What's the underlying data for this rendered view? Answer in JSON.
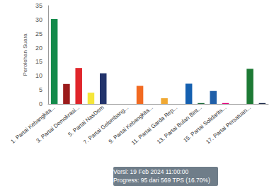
{
  "chart_data": {
    "type": "bar",
    "y_label": "Perolehan Suara",
    "categories": [
      "1. Partai Kebangkita...",
      null,
      "3. Partai Demokrasi...",
      null,
      "5. Partai NasDem",
      null,
      "7. Partai Gelombang...",
      null,
      "9. Partai Kebangkita...",
      null,
      "11. Partai Garda Rep...",
      null,
      "13. Partai Bulan Bint...",
      null,
      "15. Partai Solidarits...",
      null,
      "17. Partai Persatuan...",
      null
    ],
    "values": [
      30.2,
      7.1,
      12.8,
      4.0,
      10.9,
      0,
      0,
      6.4,
      0,
      2.0,
      0,
      7.2,
      0.3,
      4.6,
      0.3,
      0,
      12.5,
      0.3
    ],
    "colors": [
      "#138a4a",
      "#9b1b1b",
      "#e0252b",
      "#f5e63a",
      "#22336b",
      "#d83a2a",
      "#2a6ebb",
      "#f26a21",
      "#c0392b",
      "#f0a832",
      "#7a4a1f",
      "#1560b0",
      "#1d6b3a",
      "#1f5fa8",
      "#e4007c",
      "#1b3f8b",
      "#1d7a35",
      "#1c2a4a"
    ],
    "ylim": [
      0,
      35
    ],
    "yticks": [
      0,
      5,
      10,
      15,
      20,
      25,
      30,
      35
    ],
    "grid": false,
    "annotations": [
      "Versi: 19 Feb 2024 11:00:00",
      "Progress: 95 dari 569 TPS (16.70%)"
    ]
  }
}
